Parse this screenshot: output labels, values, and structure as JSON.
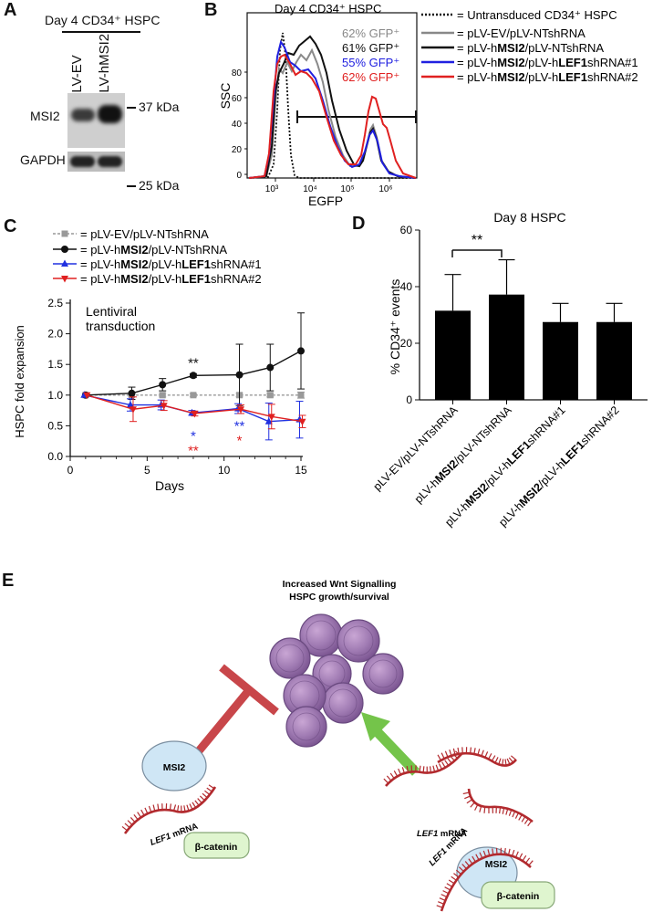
{
  "panels": {
    "a": "A",
    "b": "B",
    "c": "C",
    "d": "D",
    "e": "E"
  },
  "panelA": {
    "title": "Day 4 CD34⁺ HSPC",
    "lanes": [
      "pLV-EV",
      "pLV-hMSI2"
    ],
    "rows": [
      "MSI2",
      "GAPDH"
    ],
    "markers": [
      "37 kDa",
      "25 kDa"
    ]
  },
  "panelB": {
    "title": "Day 4 CD34⁺ HSPC",
    "ylabel": "SSC",
    "xlabel": "EGFP",
    "legend": [
      {
        "pct": "",
        "label": "= Untransduced CD34⁺ HSPC",
        "color": "#111111",
        "dash": true
      },
      {
        "pct": "62% GFP⁺",
        "label": "= pLV-EV/pLV-NTshRNA",
        "color": "#888888"
      },
      {
        "pct": "61% GFP⁺",
        "label": "= pLV-hMSI2/pLV-NTshRNA",
        "color": "#111111"
      },
      {
        "pct": "55% GFP⁺",
        "label": "= pLV-hMSI2/pLV-hLEF1shRNA#1",
        "color": "#2020e0"
      },
      {
        "pct": "62% GFP⁺",
        "label": "= pLV-hMSI2/pLV-hLEF1shRNA#2",
        "color": "#e02020"
      }
    ],
    "yticks": [
      "0",
      "20",
      "40",
      "60",
      "80"
    ],
    "xticks": [
      "10³",
      "10⁴",
      "10⁵",
      "10⁶"
    ]
  },
  "panelC": {
    "ylabel": "HSPC fold expansion",
    "xlabel": "Days",
    "annotation": [
      "Lentiviral",
      "transduction"
    ],
    "yticks": [
      "0.0",
      "0.5",
      "1.0",
      "1.5",
      "2.0",
      "2.5"
    ],
    "xticks": [
      "0",
      "5",
      "10",
      "15"
    ],
    "legend": [
      "= pLV-EV/pLV-NTshRNA",
      "= pLV-hMSI2/pLV-NTshRNA",
      "= pLV-hMSI2/pLV-hLEF1shRNA#1",
      "= pLV-hMSI2/pLV-hLEF1shRNA#2"
    ],
    "sig": {
      "black_day8": "**",
      "blue_day8": "*",
      "red_day8": "**",
      "blue_day11": "**",
      "red_day11": "*"
    }
  },
  "panelD": {
    "title": "Day 8 HSPC",
    "ylabel": "% CD34⁺ events",
    "yticks": [
      "0",
      "20",
      "40",
      "60"
    ],
    "sig": "**"
  },
  "panelE": {
    "title_line1": "Increased Wnt Signalling",
    "title_line2": "HSPC growth/survival",
    "msi2": "MSI2",
    "lef1": "LEF1",
    "mrna": " mRNA",
    "bcat": "β-catenin"
  },
  "chart_data": [
    {
      "type": "line",
      "panel": "C",
      "xlabel": "Days",
      "ylabel": "HSPC fold expansion",
      "xlim": [
        0,
        15
      ],
      "ylim": [
        0,
        2.5
      ],
      "x": [
        1,
        4,
        6,
        8,
        11,
        13,
        15
      ],
      "series": [
        {
          "name": "pLV-EV/pLV-NTshRNA",
          "color": "#999999",
          "values": [
            1.0,
            1.0,
            1.0,
            1.0,
            1.0,
            1.0,
            1.0
          ],
          "err": [
            0,
            0.03,
            0.03,
            0.02,
            0.03,
            0.03,
            0.05
          ]
        },
        {
          "name": "pLV-hMSI2/pLV-NTshRNA",
          "color": "#111111",
          "values": [
            1.0,
            1.03,
            1.17,
            1.32,
            1.33,
            1.45,
            1.72
          ],
          "err": [
            0,
            0.1,
            0.1,
            0.03,
            0.5,
            0.38,
            0.62
          ]
        },
        {
          "name": "pLV-hMSI2/pLV-hLEF1shRNA#1",
          "color": "#2030e0",
          "values": [
            1.0,
            0.84,
            0.84,
            0.71,
            0.78,
            0.57,
            0.6
          ],
          "err": [
            0,
            0.1,
            0.08,
            0.04,
            0.08,
            0.3,
            0.3
          ]
        },
        {
          "name": "pLV-hMSI2/pLV-hLEF1shRNA#2",
          "color": "#e02020",
          "values": [
            1.0,
            0.77,
            0.83,
            0.7,
            0.77,
            0.65,
            0.57
          ],
          "err": [
            0,
            0.2,
            0.08,
            0.04,
            0.07,
            0.2,
            0.1
          ]
        }
      ]
    },
    {
      "type": "bar",
      "panel": "D",
      "title": "Day 8 HSPC",
      "ylabel": "% CD34⁺ events",
      "ylim": [
        0,
        60
      ],
      "categories": [
        "pLV-EV/pLV-NTshRNA",
        "pLV-hMSI2/pLV-NTshRNA",
        "pLV-hMSI2/pLV-hLEF1shRNA#1",
        "pLV-hMSI2/pLV-hLEF1shRNA#2"
      ],
      "values": [
        31.5,
        37.2,
        27.5,
        27.5
      ],
      "err": [
        12.8,
        12.3,
        6.6,
        6.6
      ]
    }
  ]
}
